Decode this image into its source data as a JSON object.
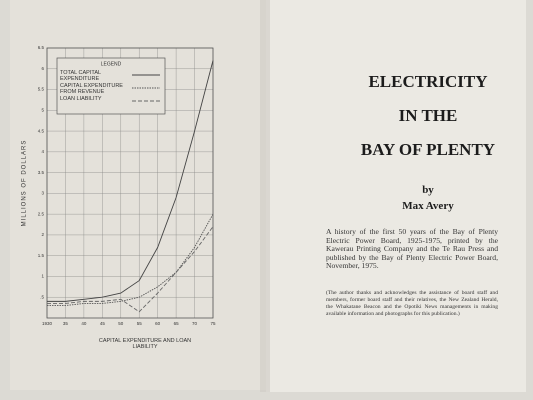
{
  "chart_data": {
    "type": "line",
    "title": "CAPITAL EXPENDITURE AND LOAN LIABILITY",
    "y_label": "MILLIONS OF DOLLARS",
    "legend_title": "LEGEND",
    "x": [
      1930,
      1935,
      1940,
      1945,
      1950,
      1955,
      1960,
      1965,
      1970,
      1975
    ],
    "series": [
      {
        "name": "TOTAL CAPITAL EXPENDITURE",
        "color": "#444444",
        "values": [
          0.4,
          0.4,
          0.45,
          0.5,
          0.6,
          0.9,
          1.7,
          2.9,
          4.5,
          6.2
        ]
      },
      {
        "name": "CAPITAL EXPENDITURE FROM REVENUE",
        "color": "#555555",
        "values": [
          0.3,
          0.3,
          0.35,
          0.35,
          0.4,
          0.5,
          0.75,
          1.1,
          1.7,
          2.5
        ]
      },
      {
        "name": "LOAN LIABILITY",
        "color": "#666666",
        "values": [
          0.35,
          0.35,
          0.4,
          0.4,
          0.45,
          0.15,
          0.6,
          1.1,
          1.6,
          2.2
        ]
      }
    ],
    "xlim": [
      1930,
      1975
    ],
    "xticks": [
      1930,
      {
        "value": 1935,
        "label": "35"
      },
      {
        "value": 1940,
        "label": "40"
      },
      {
        "value": 1945,
        "label": "45"
      },
      {
        "value": 1950,
        "label": "50"
      },
      {
        "value": 1955,
        "label": "55"
      },
      {
        "value": 1960,
        "label": "60"
      },
      {
        "value": 1965,
        "label": "65"
      },
      {
        "value": 1970,
        "label": "70"
      },
      {
        "value": 1975,
        "label": "75"
      }
    ],
    "ylim": [
      0,
      6.5
    ],
    "yticks": [
      {
        "value": 0.5,
        "label": ".5"
      },
      1,
      1.5,
      2,
      2.5,
      3,
      3.5,
      4,
      4.5,
      5,
      5.5,
      6,
      6.5
    ],
    "grid": true
  },
  "book": {
    "title_lines": [
      "ELECTRICITY",
      "IN THE",
      "BAY OF PLENTY"
    ],
    "by": "by",
    "author": "Max Avery",
    "description": "A history of the first 50 years of the Bay of Plenty Electric Power Board, 1925-1975, printed by the Kawerau Printing Company and the Te Rau Press and published by the Bay of Plenty Electric Power Board, November, 1975.",
    "acknowledgement": "(The author thanks and acknowledges the assistance of board staff and members, former board staff and their relatives, the New Zealand Herald, the Whakatane Beacon and the Opotiki News managements in making available information and photographs for this publication.)"
  }
}
